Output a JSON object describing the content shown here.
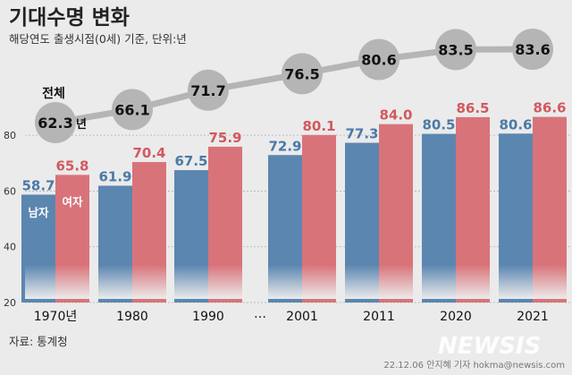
{
  "header": {
    "title": "기대수명 변화",
    "subtitle": "해당연도 출생시점(0세) 기준, 단위:년"
  },
  "chart_data": {
    "type": "bar",
    "categories": [
      "1970년",
      "1980",
      "1990",
      "2001",
      "2011",
      "2020",
      "2021"
    ],
    "gap_label": "…",
    "series": [
      {
        "name": "남자",
        "values": [
          58.7,
          61.9,
          67.5,
          72.9,
          77.3,
          80.5,
          80.6
        ],
        "color": "#5b86b0"
      },
      {
        "name": "여자",
        "values": [
          65.8,
          70.4,
          75.9,
          80.1,
          84.0,
          86.5,
          86.6
        ],
        "color": "#d9737a"
      }
    ],
    "total": {
      "name": "전체",
      "unit": "년",
      "values": [
        62.3,
        66.1,
        71.7,
        76.5,
        80.6,
        83.5,
        83.6
      ],
      "color": "#b5b5b5"
    },
    "yticks": [
      20,
      40,
      60,
      80
    ],
    "ylim": [
      20,
      90
    ],
    "colors": {
      "background": "#ebebeb",
      "men_text": "#4a7aa8",
      "women_text": "#d2585e",
      "line": "#b5b5b5"
    }
  },
  "footer": {
    "source": "자료: 통계청",
    "credit": "22.12.06 안지혜 기자 hokma@newsis.com",
    "watermark": "NEWSIS"
  }
}
